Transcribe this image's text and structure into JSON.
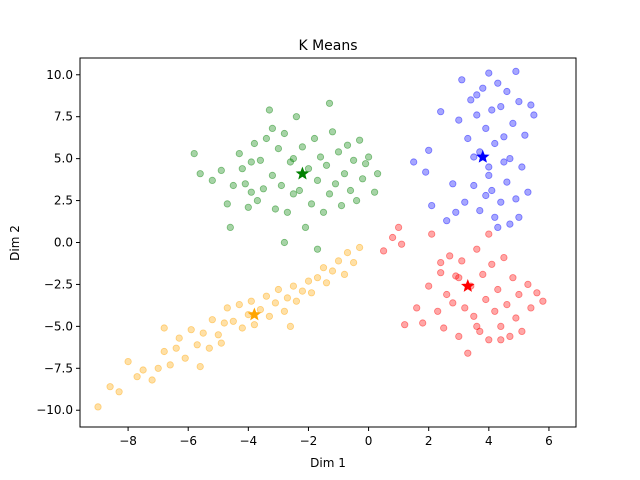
{
  "chart_data": {
    "type": "scatter",
    "title": "K Means",
    "xlabel": "Dim 1",
    "ylabel": "Dim 2",
    "xlim": [
      -9.6,
      6.9
    ],
    "ylim": [
      -11.0,
      11.0
    ],
    "xticks": [
      -8,
      -6,
      -4,
      -2,
      0,
      2,
      4,
      6
    ],
    "yticks": [
      -10.0,
      -7.5,
      -5.0,
      -2.5,
      0.0,
      2.5,
      5.0,
      7.5,
      10.0
    ],
    "xtick_labels": [
      "−8",
      "−6",
      "−4",
      "−2",
      "0",
      "2",
      "4",
      "6"
    ],
    "ytick_labels": [
      "−10.0",
      "−7.5",
      "−5.0",
      "−2.5",
      "0.0",
      "2.5",
      "5.0",
      "7.5",
      "10.0"
    ],
    "grid": false,
    "series": [
      {
        "name": "cluster-green",
        "color": "#008000",
        "center": [
          -2.2,
          4.1
        ],
        "points": [
          [
            -5.8,
            5.3
          ],
          [
            -5.6,
            4.1
          ],
          [
            -5.2,
            3.7
          ],
          [
            -4.9,
            4.3
          ],
          [
            -4.7,
            2.3
          ],
          [
            -4.6,
            0.9
          ],
          [
            -4.5,
            3.4
          ],
          [
            -4.3,
            5.3
          ],
          [
            -4.2,
            4.4
          ],
          [
            -4.1,
            3.5
          ],
          [
            -4.0,
            2.1
          ],
          [
            -3.9,
            4.8
          ],
          [
            -3.8,
            5.9
          ],
          [
            -3.7,
            2.5
          ],
          [
            -3.6,
            4.9
          ],
          [
            -3.5,
            3.2
          ],
          [
            -3.4,
            6.2
          ],
          [
            -3.3,
            7.9
          ],
          [
            -3.2,
            4.0
          ],
          [
            -3.1,
            2.0
          ],
          [
            -3.0,
            5.6
          ],
          [
            -2.9,
            3.4
          ],
          [
            -2.8,
            6.5
          ],
          [
            -2.7,
            1.8
          ],
          [
            -2.6,
            4.8
          ],
          [
            -2.5,
            2.9
          ],
          [
            -2.4,
            7.5
          ],
          [
            -2.3,
            3.1
          ],
          [
            -2.2,
            5.7
          ],
          [
            -2.1,
            0.9
          ],
          [
            -2.0,
            4.4
          ],
          [
            -1.9,
            2.3
          ],
          [
            -1.8,
            6.2
          ],
          [
            -1.7,
            3.7
          ],
          [
            -1.6,
            5.1
          ],
          [
            -1.5,
            1.8
          ],
          [
            -1.4,
            4.6
          ],
          [
            -1.3,
            2.9
          ],
          [
            -1.2,
            6.6
          ],
          [
            -1.1,
            3.5
          ],
          [
            -1.0,
            5.4
          ],
          [
            -0.9,
            2.2
          ],
          [
            -0.8,
            4.1
          ],
          [
            -0.7,
            5.8
          ],
          [
            -0.6,
            3.1
          ],
          [
            -0.5,
            4.9
          ],
          [
            -0.4,
            2.5
          ],
          [
            -0.3,
            6.1
          ],
          [
            -0.2,
            3.8
          ],
          [
            -0.1,
            4.7
          ],
          [
            0.0,
            5.1
          ],
          [
            0.2,
            3.0
          ],
          [
            0.3,
            4.1
          ],
          [
            -1.3,
            8.3
          ],
          [
            -2.8,
            0.0
          ],
          [
            -1.7,
            -0.4
          ],
          [
            -3.9,
            3.0
          ],
          [
            -2.5,
            5.0
          ],
          [
            -3.2,
            6.8
          ]
        ]
      },
      {
        "name": "cluster-blue",
        "color": "#0000ff",
        "center": [
          3.8,
          5.1
        ],
        "points": [
          [
            1.5,
            4.8
          ],
          [
            1.9,
            4.2
          ],
          [
            2.0,
            5.5
          ],
          [
            2.1,
            2.2
          ],
          [
            2.4,
            7.8
          ],
          [
            2.6,
            1.3
          ],
          [
            2.8,
            3.5
          ],
          [
            2.9,
            1.8
          ],
          [
            3.0,
            7.3
          ],
          [
            3.1,
            9.7
          ],
          [
            3.2,
            2.4
          ],
          [
            3.3,
            6.2
          ],
          [
            3.4,
            8.5
          ],
          [
            3.5,
            3.4
          ],
          [
            3.6,
            7.6
          ],
          [
            3.7,
            1.9
          ],
          [
            3.7,
            5.4
          ],
          [
            3.8,
            9.2
          ],
          [
            3.9,
            2.8
          ],
          [
            3.9,
            6.8
          ],
          [
            4.0,
            4.5
          ],
          [
            4.0,
            10.1
          ],
          [
            4.1,
            3.1
          ],
          [
            4.1,
            7.9
          ],
          [
            4.2,
            1.5
          ],
          [
            4.2,
            5.9
          ],
          [
            4.3,
            9.5
          ],
          [
            4.4,
            2.4
          ],
          [
            4.4,
            8.1
          ],
          [
            4.5,
            6.3
          ],
          [
            4.6,
            3.6
          ],
          [
            4.6,
            9.0
          ],
          [
            4.7,
            1.1
          ],
          [
            4.7,
            5.0
          ],
          [
            4.8,
            7.1
          ],
          [
            4.9,
            2.6
          ],
          [
            4.9,
            10.2
          ],
          [
            5.0,
            8.4
          ],
          [
            5.1,
            4.5
          ],
          [
            5.2,
            6.4
          ],
          [
            5.3,
            3.0
          ],
          [
            5.4,
            8.2
          ],
          [
            5.5,
            7.6
          ],
          [
            4.3,
            0.9
          ],
          [
            3.5,
            5.1
          ],
          [
            4.0,
            4.0
          ],
          [
            4.5,
            4.8
          ],
          [
            3.6,
            8.8
          ],
          [
            5.0,
            1.5
          ]
        ]
      },
      {
        "name": "cluster-red",
        "color": "#ff0000",
        "center": [
          3.3,
          -2.6
        ],
        "points": [
          [
            0.5,
            -0.5
          ],
          [
            0.8,
            0.3
          ],
          [
            1.0,
            0.9
          ],
          [
            1.1,
            -0.1
          ],
          [
            1.2,
            -4.9
          ],
          [
            1.6,
            -3.9
          ],
          [
            1.8,
            -4.8
          ],
          [
            2.0,
            -2.6
          ],
          [
            2.1,
            0.5
          ],
          [
            2.3,
            -4.1
          ],
          [
            2.4,
            -1.8
          ],
          [
            2.5,
            -5.1
          ],
          [
            2.6,
            -3.1
          ],
          [
            2.7,
            -0.8
          ],
          [
            2.8,
            -3.6
          ],
          [
            2.9,
            -2.0
          ],
          [
            3.0,
            -5.6
          ],
          [
            3.1,
            -1.1
          ],
          [
            3.2,
            -3.9
          ],
          [
            3.3,
            -6.6
          ],
          [
            3.4,
            -2.6
          ],
          [
            3.5,
            -4.4
          ],
          [
            3.6,
            -0.4
          ],
          [
            3.7,
            -5.3
          ],
          [
            3.8,
            -1.9
          ],
          [
            3.9,
            -3.4
          ],
          [
            4.0,
            -5.8
          ],
          [
            4.1,
            -1.3
          ],
          [
            4.2,
            -4.1
          ],
          [
            4.3,
            -2.8
          ],
          [
            4.4,
            -5.0
          ],
          [
            4.5,
            -0.9
          ],
          [
            4.6,
            -3.7
          ],
          [
            4.7,
            -5.6
          ],
          [
            4.8,
            -2.1
          ],
          [
            4.9,
            -4.5
          ],
          [
            5.0,
            -3.1
          ],
          [
            5.1,
            -5.3
          ],
          [
            5.3,
            -2.5
          ],
          [
            5.4,
            -3.9
          ],
          [
            5.6,
            -3.0
          ],
          [
            5.8,
            -3.5
          ],
          [
            4.4,
            -5.8
          ],
          [
            3.6,
            -5.0
          ],
          [
            4.0,
            0.5
          ],
          [
            2.4,
            -1.2
          ],
          [
            3.0,
            -2.1
          ]
        ]
      },
      {
        "name": "cluster-orange",
        "color": "#ffa500",
        "center": [
          -3.8,
          -4.3
        ],
        "points": [
          [
            -9.0,
            -9.8
          ],
          [
            -8.6,
            -8.6
          ],
          [
            -8.3,
            -8.9
          ],
          [
            -8.0,
            -7.1
          ],
          [
            -7.7,
            -8.0
          ],
          [
            -7.5,
            -7.6
          ],
          [
            -7.2,
            -8.2
          ],
          [
            -7.0,
            -7.5
          ],
          [
            -6.8,
            -6.5
          ],
          [
            -6.6,
            -7.3
          ],
          [
            -6.4,
            -6.3
          ],
          [
            -6.3,
            -5.7
          ],
          [
            -6.1,
            -6.9
          ],
          [
            -5.9,
            -5.2
          ],
          [
            -5.7,
            -6.1
          ],
          [
            -5.5,
            -5.4
          ],
          [
            -5.3,
            -6.3
          ],
          [
            -5.2,
            -4.6
          ],
          [
            -5.0,
            -5.5
          ],
          [
            -4.8,
            -4.8
          ],
          [
            -4.7,
            -3.9
          ],
          [
            -4.5,
            -4.7
          ],
          [
            -4.3,
            -3.7
          ],
          [
            -4.2,
            -5.1
          ],
          [
            -4.0,
            -4.3
          ],
          [
            -3.9,
            -3.5
          ],
          [
            -3.8,
            -4.9
          ],
          [
            -3.6,
            -4.0
          ],
          [
            -3.4,
            -3.2
          ],
          [
            -3.3,
            -4.4
          ],
          [
            -3.1,
            -3.6
          ],
          [
            -3.0,
            -2.8
          ],
          [
            -2.8,
            -4.1
          ],
          [
            -2.7,
            -3.3
          ],
          [
            -2.5,
            -2.6
          ],
          [
            -2.4,
            -3.5
          ],
          [
            -2.2,
            -2.9
          ],
          [
            -2.0,
            -2.3
          ],
          [
            -1.9,
            -3.0
          ],
          [
            -1.7,
            -2.1
          ],
          [
            -1.5,
            -1.5
          ],
          [
            -1.4,
            -2.4
          ],
          [
            -1.2,
            -1.7
          ],
          [
            -1.0,
            -1.1
          ],
          [
            -0.8,
            -1.9
          ],
          [
            -0.7,
            -0.6
          ],
          [
            -0.5,
            -1.2
          ],
          [
            -0.3,
            -0.3
          ],
          [
            -5.6,
            -7.4
          ],
          [
            -4.9,
            -6.0
          ],
          [
            -2.6,
            -5.0
          ],
          [
            -6.8,
            -5.1
          ]
        ]
      }
    ]
  }
}
